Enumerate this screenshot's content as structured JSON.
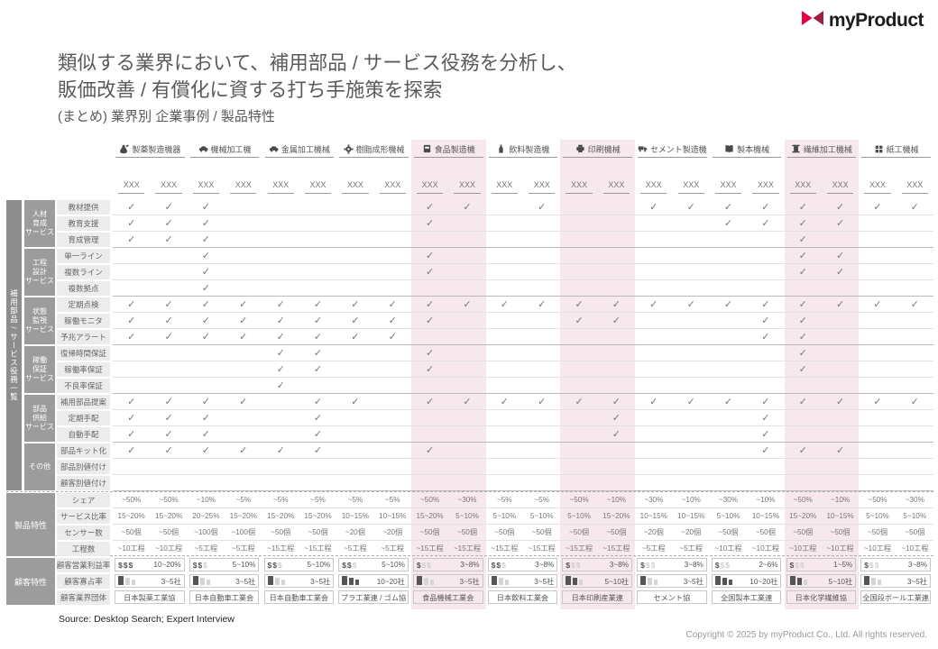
{
  "logo": {
    "text": "myProduct",
    "mark_red": "#e30045",
    "mark_dark_red": "#9e1f41"
  },
  "title": {
    "line1": "類似する業界において、補用部品 / サービス役務を分析し、",
    "line2": "販価改善 / 有償化に資する打ち手施策を探索",
    "subtitle": "(まとめ) 業界別 企業事例 / 製品特性"
  },
  "colors": {
    "highlight_pink": "#f7e8ed",
    "check_gray": "#767676",
    "group_gray": "#9c9c9c"
  },
  "matrix": {
    "column_placeholder": "XXX",
    "check_glyph": "✓",
    "sidebar_vertical_label": "補用部品 / サービス役務一覧",
    "industries": [
      {
        "name": "製薬製造機器",
        "icon": "flask-icon",
        "highlight": false
      },
      {
        "name": "機械加工機",
        "icon": "car-icon",
        "highlight": false
      },
      {
        "name": "金属加工機械",
        "icon": "car-icon",
        "highlight": false
      },
      {
        "name": "樹脂成形機械",
        "icon": "gear-icon",
        "highlight": false
      },
      {
        "name": "食品製造機",
        "icon": "food-machine-icon",
        "highlight": true
      },
      {
        "name": "飲料製造機",
        "icon": "bottle-icon",
        "highlight": false
      },
      {
        "name": "印刷機械",
        "icon": "printer-icon",
        "highlight": true
      },
      {
        "name": "セメント製造機",
        "icon": "truck-icon",
        "highlight": false
      },
      {
        "name": "製本機械",
        "icon": "book-icon",
        "highlight": false
      },
      {
        "name": "繊維加工機械",
        "icon": "spool-icon",
        "highlight": true
      },
      {
        "name": "紙工機械",
        "icon": "package-icon",
        "highlight": false
      }
    ],
    "service_groups": [
      {
        "label": [
          "人材",
          "育成",
          "サービス"
        ],
        "rows": [
          {
            "label": "教材提供",
            "checks": "1110000011010011111111"
          },
          {
            "label": "教育支援",
            "checks": "1110000010000000111100"
          },
          {
            "label": "育成管理",
            "checks": "1110000000000000001000"
          }
        ]
      },
      {
        "label": [
          "工程",
          "設計",
          "サービス"
        ],
        "rows": [
          {
            "label": "単一ライン",
            "checks": "0010000010000000001100"
          },
          {
            "label": "複数ライン",
            "checks": "0010000010000000001100"
          },
          {
            "label": "複数拠点",
            "checks": "0010000000000000000000"
          }
        ]
      },
      {
        "label": [
          "状態",
          "監視",
          "サービス"
        ],
        "rows": [
          {
            "label": "定期点検",
            "checks": "1111111111111111111111"
          },
          {
            "label": "稼働モニタ",
            "checks": "1111111110001100011000"
          },
          {
            "label": "予兆アラート",
            "checks": "1111111100000000011000"
          }
        ]
      },
      {
        "label": [
          "稼働",
          "保証",
          "サービス"
        ],
        "rows": [
          {
            "label": "復帰時間保証",
            "checks": "0000110010000000001000"
          },
          {
            "label": "稼働率保証",
            "checks": "0000110010000000001000"
          },
          {
            "label": "不良率保証",
            "checks": "0000100000000000000000"
          }
        ]
      },
      {
        "label": [
          "部品",
          "供給",
          "サービス"
        ],
        "rows": [
          {
            "label": "補用部品提案",
            "checks": "1111011011111111111111"
          },
          {
            "label": "定期手配",
            "checks": "1110010000000100010000"
          },
          {
            "label": "自動手配",
            "checks": "1110010000000100010000"
          }
        ]
      },
      {
        "label": [
          "その他"
        ],
        "rows": [
          {
            "label": "部品キット化",
            "checks": "1111110010000000011100"
          },
          {
            "label": "部品別値付け",
            "checks": "0000000000000000000000"
          },
          {
            "label": "顧客別値付け",
            "checks": "0000000000000000000000"
          }
        ]
      }
    ],
    "product_section": {
      "label": "製品特性",
      "rows": [
        {
          "label": "シェア",
          "values": [
            "~50%",
            "~50%",
            "~10%",
            "~5%",
            "~5%",
            "~5%",
            "~5%",
            "~5%",
            "~50%",
            "~30%",
            "~5%",
            "~5%",
            "~50%",
            "~10%",
            "~30%",
            "~10%",
            "~30%",
            "~10%",
            "~50%",
            "~10%",
            "~50%",
            "~30%"
          ]
        },
        {
          "label": "サービス比率",
          "values": [
            "15~20%",
            "15~20%",
            "20~25%",
            "15~20%",
            "15~20%",
            "15~20%",
            "10~15%",
            "10~15%",
            "15~20%",
            "5~10%",
            "5~10%",
            "5~10%",
            "5~10%",
            "15~20%",
            "10~15%",
            "10~15%",
            "5~10%",
            "10~15%",
            "15~20%",
            "10~15%",
            "5~10%",
            "5~10%"
          ]
        },
        {
          "label": "センサー数",
          "values": [
            "~50個",
            "~50個",
            "~100個",
            "~100個",
            "~50個",
            "~50個",
            "~20個",
            "~20個",
            "~50個",
            "~50個",
            "~50個",
            "~50個",
            "~50個",
            "~50個",
            "~20個",
            "~20個",
            "~50個",
            "~50個",
            "~50個",
            "~50個",
            "~50個",
            "~50個"
          ]
        },
        {
          "label": "工程数",
          "values": [
            "~10工程",
            "~10工程",
            "~5工程",
            "~5工程",
            "~15工程",
            "~15工程",
            "~5工程",
            "~5工程",
            "~15工程",
            "~15工程",
            "~15工程",
            "~15工程",
            "~15工程",
            "~15工程",
            "~5工程",
            "~5工程",
            "~10工程",
            "~10工程",
            "~10工程",
            "~10工程",
            "~10工程",
            "~10工程"
          ]
        }
      ]
    },
    "customer_section": {
      "label": "顧客特性",
      "dollar_glyph": "$",
      "rows": [
        {
          "label": "顧客営業利益率",
          "type": "profit",
          "cells": [
            {
              "dollars_active": 3,
              "value": "10~20%"
            },
            {
              "dollars_active": 2,
              "value": "5~10%"
            },
            {
              "dollars_active": 2,
              "value": "5~10%"
            },
            {
              "dollars_active": 2,
              "value": "5~10%"
            },
            {
              "dollars_active": 1,
              "value": "3~8%"
            },
            {
              "dollars_active": 2,
              "value": "3~8%"
            },
            {
              "dollars_active": 1,
              "value": "3~8%"
            },
            {
              "dollars_active": 1,
              "value": "3~8%"
            },
            {
              "dollars_active": 1,
              "value": "2~6%"
            },
            {
              "dollars_active": 1,
              "value": "1~5%"
            },
            {
              "dollars_active": 1,
              "value": "3~8%"
            }
          ]
        },
        {
          "label": "顧客寡占率",
          "type": "oligopoly",
          "cells": [
            {
              "buildings_active": 1,
              "value": "3~5社"
            },
            {
              "buildings_active": 1,
              "value": "3~5社"
            },
            {
              "buildings_active": 1,
              "value": "3~5社"
            },
            {
              "buildings_active": 3,
              "value": "10~20社"
            },
            {
              "buildings_active": 1,
              "value": "3~5社"
            },
            {
              "buildings_active": 1,
              "value": "3~5社"
            },
            {
              "buildings_active": 2,
              "value": "5~10社"
            },
            {
              "buildings_active": 1,
              "value": "3~5社"
            },
            {
              "buildings_active": 3,
              "value": "10~20社"
            },
            {
              "buildings_active": 2,
              "value": "5~10社"
            },
            {
              "buildings_active": 1,
              "value": "3~5社"
            }
          ]
        },
        {
          "label": "顧客業界団体",
          "type": "org",
          "cells": [
            {
              "value": "日本製薬工業協"
            },
            {
              "value": "日本自動車工業会"
            },
            {
              "value": "日本自動車工業会"
            },
            {
              "value": "プラ工業連 / ゴム協"
            },
            {
              "value": "食品機械工業会"
            },
            {
              "value": "日本飲料工業会"
            },
            {
              "value": "日本印刷産業連"
            },
            {
              "value": "セメント協"
            },
            {
              "value": "全国製本工業連"
            },
            {
              "value": "日本化学繊維協"
            },
            {
              "value": "全国段ボール工業連"
            }
          ]
        }
      ]
    }
  },
  "footer": {
    "source": "Source: Desktop Search; Expert Interview",
    "copyright": "Copyright © 2025 by myProduct Co., Ltd.  All rights reserved."
  }
}
